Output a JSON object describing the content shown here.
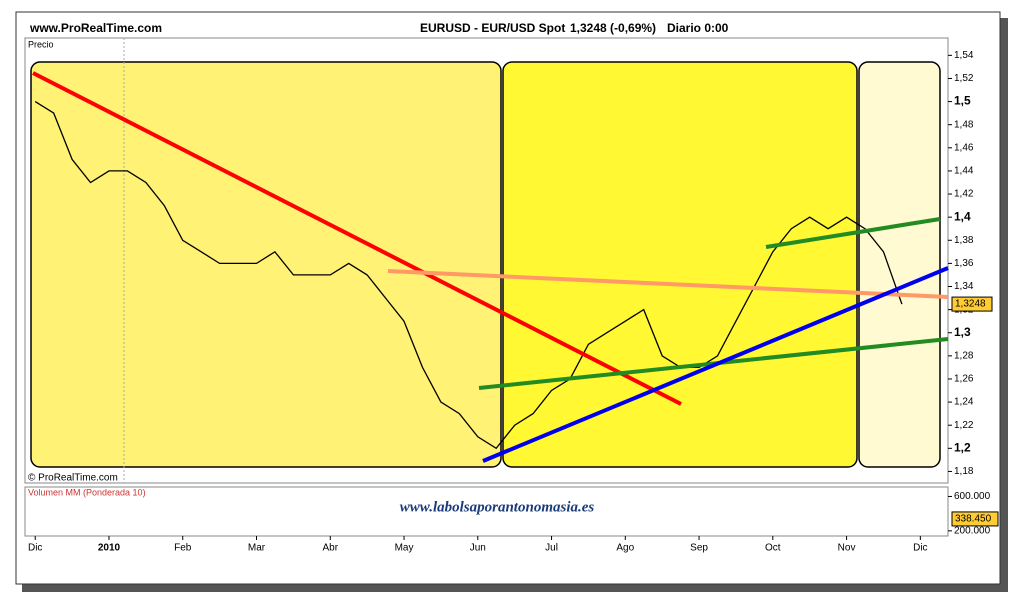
{
  "header": {
    "site": "www.ProRealTime.com"
  },
  "chart_data": {
    "type": "line",
    "title": "EURUSD - EUR/USD Spot",
    "quote": "1,3248 (-0,69%)",
    "period": "Diario  0:00",
    "y_label": "Precio",
    "copyright": "© ProRealTime.com",
    "watermark": "www.labolsaporantonomasia.es",
    "categories": [
      "Dic",
      null,
      null,
      null,
      "2010",
      null,
      null,
      null,
      "Feb",
      null,
      null,
      null,
      "Mar",
      null,
      null,
      null,
      "Abr",
      null,
      null,
      null,
      "May",
      null,
      null,
      null,
      "Jun",
      null,
      null,
      null,
      "Jul",
      null,
      null,
      null,
      "Ago",
      null,
      null,
      null,
      "Sep",
      null,
      null,
      null,
      "Oct",
      null,
      null,
      null,
      "Nov",
      null,
      null,
      null,
      "Dic",
      null
    ],
    "values": [
      1.5,
      1.49,
      1.45,
      1.43,
      1.44,
      1.44,
      1.43,
      1.41,
      1.38,
      1.37,
      1.36,
      1.36,
      1.36,
      1.37,
      1.35,
      1.35,
      1.35,
      1.36,
      1.35,
      1.33,
      1.31,
      1.27,
      1.24,
      1.23,
      1.21,
      1.2,
      1.22,
      1.23,
      1.25,
      1.26,
      1.29,
      1.3,
      1.31,
      1.32,
      1.28,
      1.27,
      1.27,
      1.28,
      1.31,
      1.34,
      1.37,
      1.39,
      1.4,
      1.39,
      1.4,
      1.39,
      1.37,
      1.3248,
      null,
      null
    ],
    "value_labels": [
      null,
      null,
      null,
      null,
      null,
      null,
      null,
      null,
      null,
      null,
      null,
      null,
      null,
      null,
      null,
      null,
      null,
      null,
      null,
      null,
      null,
      null,
      null,
      null,
      null,
      null,
      null,
      null,
      null,
      null,
      null,
      null,
      null,
      null,
      null,
      null,
      null,
      null,
      null,
      null,
      null,
      null,
      null,
      null,
      null,
      null,
      null,
      "1,3248",
      null,
      null
    ],
    "color": "#000000",
    "ylim": [
      1.17,
      1.555
    ],
    "yticks": [
      {
        "value": 1.18,
        "label": "1,18"
      },
      {
        "value": 1.2,
        "label": "1,2"
      },
      {
        "value": 1.22,
        "label": "1,22"
      },
      {
        "value": 1.24,
        "label": "1,24"
      },
      {
        "value": 1.26,
        "label": "1,26"
      },
      {
        "value": 1.28,
        "label": "1,28"
      },
      {
        "value": 1.3,
        "label": "1,3"
      },
      {
        "value": 1.32,
        "label": "1,32"
      },
      {
        "value": 1.34,
        "label": "1,34"
      },
      {
        "value": 1.36,
        "label": "1,36"
      },
      {
        "value": 1.38,
        "label": "1,38"
      },
      {
        "value": 1.4,
        "label": "1,4"
      },
      {
        "value": 1.42,
        "label": "1,42"
      },
      {
        "value": 1.44,
        "label": "1,44"
      },
      {
        "value": 1.46,
        "label": "1,46"
      },
      {
        "value": 1.48,
        "label": "1,48"
      },
      {
        "value": 1.5,
        "label": "1,5"
      },
      {
        "value": 1.52,
        "label": "1,52"
      },
      {
        "value": 1.54,
        "label": "1,54"
      }
    ],
    "volume": {
      "label": "Volumen MM (Ponderada 10)",
      "ylim": [
        140000,
        710000
      ],
      "yticks": [
        {
          "value": 600000,
          "label": "600.000"
        },
        {
          "value": 200000,
          "label": "200.000"
        }
      ],
      "last": 338450,
      "last_label": "338.450"
    }
  }
}
